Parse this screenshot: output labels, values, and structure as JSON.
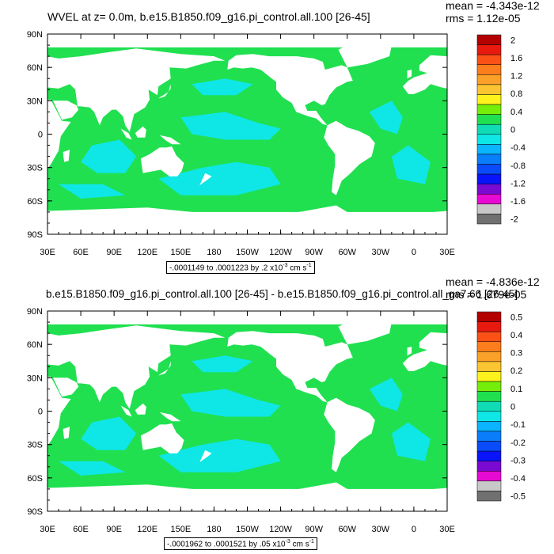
{
  "chart_data": [
    {
      "type": "heatmap",
      "title": "WVEL at z=    0.0m, b.e15.B1850.f09_g16.pi_control.all.100 [26-45]",
      "stats": {
        "mean": "mean = -4.343e-12",
        "rms": "rms = 1.12e-05"
      },
      "x_ticks": [
        "30E",
        "60E",
        "90E",
        "120E",
        "150E",
        "180",
        "150W",
        "120W",
        "90W",
        "60W",
        "30W",
        "0",
        "30E"
      ],
      "y_ticks": [
        "90N",
        "60N",
        "30N",
        "0",
        "30S",
        "60S",
        "90S"
      ],
      "xlim": [
        30,
        390
      ],
      "ylim": [
        -90,
        90
      ],
      "range_label": "-.0001149 to .0001223 by .2 x10",
      "range_exp": "-3",
      "range_units": "cm s",
      "range_units_exp": "-1",
      "colorbar_labels": [
        "2",
        "1.6",
        "1.2",
        "0.8",
        "0.4",
        "0",
        "-0.4",
        "-0.8",
        "-1.2",
        "-1.6",
        "-2"
      ],
      "colorbar_colors": [
        "#b40000",
        "#e8190f",
        "#fb5016",
        "#fb7d1c",
        "#fba12a",
        "#fbc431",
        "#fdf21c",
        "#75ee0a",
        "#20e050",
        "#0fdcb4",
        "#0fe6e6",
        "#0ab4ff",
        "#0a7dfa",
        "#0a4bfa",
        "#0a14fa",
        "#7a0ad2",
        "#e60ad2",
        "#c8c8c8",
        "#707070"
      ]
    },
    {
      "type": "heatmap",
      "title": "b.e15.B1850.f09_g16.pi_control.all.100 [26-45] - b.e15.B1850.f09_g16.pi_control.all_ga7.66 [26-45]",
      "stats": {
        "mean": "mean = -4.836e-12",
        "rms": "rms = 1.679e-05"
      },
      "x_ticks": [
        "30E",
        "60E",
        "90E",
        "120E",
        "150E",
        "180",
        "150W",
        "120W",
        "90W",
        "60W",
        "30W",
        "0",
        "30E"
      ],
      "y_ticks": [
        "90N",
        "60N",
        "30N",
        "0",
        "30S",
        "60S",
        "90S"
      ],
      "xlim": [
        30,
        390
      ],
      "ylim": [
        -90,
        90
      ],
      "range_label": "-.0001962 to .0001521 by .05 x10",
      "range_exp": "-3",
      "range_units": "cm s",
      "range_units_exp": "-1",
      "colorbar_labels": [
        "0.5",
        "0.4",
        "0.3",
        "0.2",
        "0.1",
        "0",
        "-0.1",
        "-0.2",
        "-0.3",
        "-0.4",
        "-0.5"
      ],
      "colorbar_colors": [
        "#b40000",
        "#e8190f",
        "#fb5016",
        "#fb7d1c",
        "#fba12a",
        "#fbc431",
        "#fdf21c",
        "#75ee0a",
        "#20e050",
        "#0fdcb4",
        "#0fe6e6",
        "#0ab4ff",
        "#0a7dfa",
        "#0a4bfa",
        "#0a14fa",
        "#7a0ad2",
        "#e60ad2",
        "#c8c8c8",
        "#707070"
      ]
    }
  ]
}
